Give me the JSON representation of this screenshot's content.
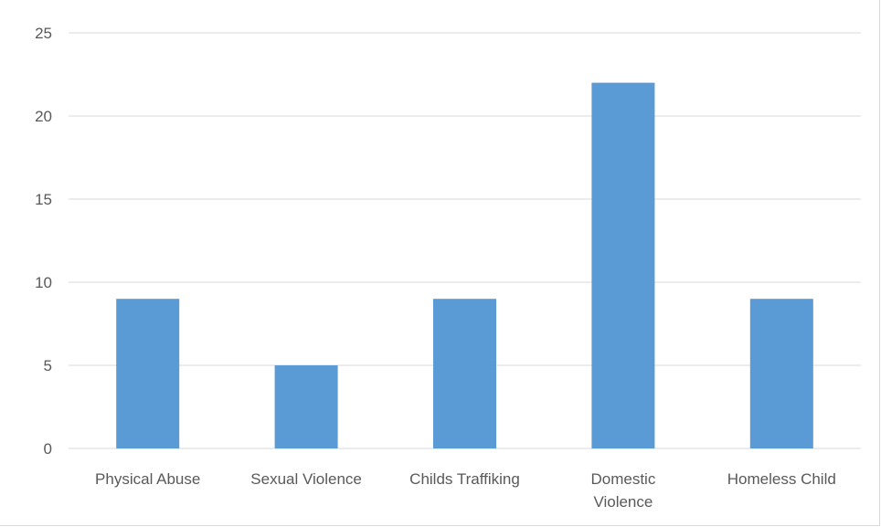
{
  "chart_data": {
    "type": "bar",
    "title": "",
    "xlabel": "",
    "ylabel": "",
    "categories": [
      [
        "Physical Abuse"
      ],
      [
        "Sexual Violence"
      ],
      [
        "Childs Traffiking"
      ],
      [
        "Domestic",
        "Violence"
      ],
      [
        "Homeless Child"
      ]
    ],
    "values": [
      9,
      5,
      9,
      22,
      9
    ],
    "ylim": [
      0,
      25
    ],
    "yticks": [
      0,
      5,
      10,
      15,
      20,
      25
    ],
    "grid": true,
    "legend": "none",
    "colors": {
      "bar": "#5b9bd5",
      "grid": "#d9d9d9",
      "text": "#595959"
    }
  }
}
